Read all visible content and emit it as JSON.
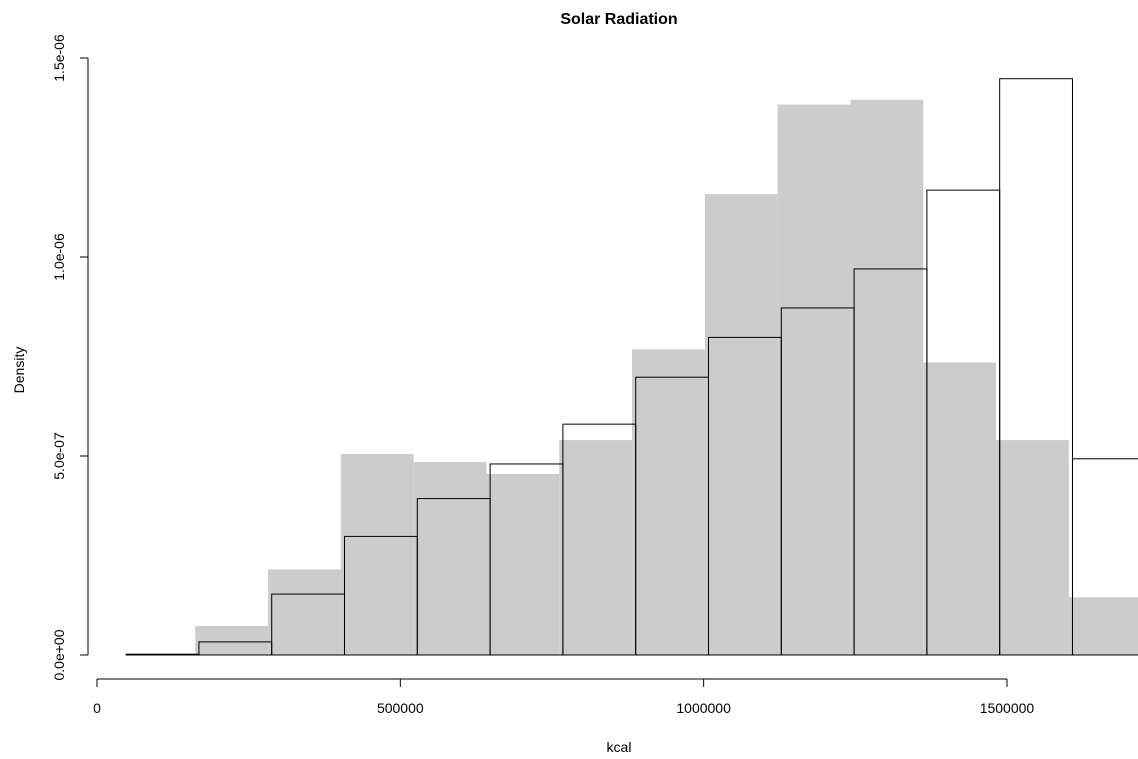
{
  "chart_data": {
    "type": "bar",
    "title": "Solar Radiation",
    "xlabel": "kcal",
    "ylabel": "Density",
    "xlim": [
      0,
      1716000
    ],
    "ylim": [
      0,
      1.5e-06
    ],
    "x_ticks": [
      {
        "value": 0,
        "label": "0"
      },
      {
        "value": 500000,
        "label": "500000"
      },
      {
        "value": 1000000,
        "label": "1000000"
      },
      {
        "value": 1500000,
        "label": "1500000"
      }
    ],
    "y_ticks": [
      {
        "value": 0,
        "label": "0.0e+00"
      },
      {
        "value": 5e-07,
        "label": "5.0e-07"
      },
      {
        "value": 1e-06,
        "label": "1.0e-06"
      },
      {
        "value": 1.5e-06,
        "label": "1.5e-06"
      }
    ],
    "series": [
      {
        "style": "filled",
        "color": "#cccccc",
        "bins": [
          {
            "x0": 162000,
            "x1": 282000,
            "density": 7.3e-08
          },
          {
            "x0": 282000,
            "x1": 402000,
            "density": 2.15e-07
          },
          {
            "x0": 402000,
            "x1": 522000,
            "density": 5.05e-07
          },
          {
            "x0": 522000,
            "x1": 642000,
            "density": 4.85e-07
          },
          {
            "x0": 642000,
            "x1": 762000,
            "density": 4.55e-07
          },
          {
            "x0": 762000,
            "x1": 882000,
            "density": 5.4e-07
          },
          {
            "x0": 882000,
            "x1": 1002000,
            "density": 7.68e-07
          },
          {
            "x0": 1002000,
            "x1": 1122000,
            "density": 1.158e-06
          },
          {
            "x0": 1122000,
            "x1": 1242000,
            "density": 1.383e-06
          },
          {
            "x0": 1242000,
            "x1": 1362000,
            "density": 1.395e-06
          },
          {
            "x0": 1362000,
            "x1": 1482000,
            "density": 7.35e-07
          },
          {
            "x0": 1482000,
            "x1": 1602000,
            "density": 5.4e-07
          },
          {
            "x0": 1602000,
            "x1": 1722000,
            "density": 1.45e-07
          }
        ]
      },
      {
        "style": "outline",
        "color": "#000000",
        "bins": [
          {
            "x0": 48000,
            "x1": 168000,
            "density": 2e-09
          },
          {
            "x0": 168000,
            "x1": 288000,
            "density": 3.3e-08
          },
          {
            "x0": 288000,
            "x1": 408000,
            "density": 1.53e-07
          },
          {
            "x0": 408000,
            "x1": 528000,
            "density": 2.98e-07
          },
          {
            "x0": 528000,
            "x1": 648000,
            "density": 3.93e-07
          },
          {
            "x0": 648000,
            "x1": 768000,
            "density": 4.8e-07
          },
          {
            "x0": 768000,
            "x1": 888000,
            "density": 5.8e-07
          },
          {
            "x0": 888000,
            "x1": 1008000,
            "density": 6.98e-07
          },
          {
            "x0": 1008000,
            "x1": 1128000,
            "density": 7.98e-07
          },
          {
            "x0": 1128000,
            "x1": 1248000,
            "density": 8.72e-07
          },
          {
            "x0": 1248000,
            "x1": 1368000,
            "density": 9.7e-07
          },
          {
            "x0": 1368000,
            "x1": 1488000,
            "density": 1.168e-06
          },
          {
            "x0": 1488000,
            "x1": 1608000,
            "density": 1.448e-06
          },
          {
            "x0": 1608000,
            "x1": 1728000,
            "density": 4.93e-07
          }
        ]
      }
    ]
  }
}
